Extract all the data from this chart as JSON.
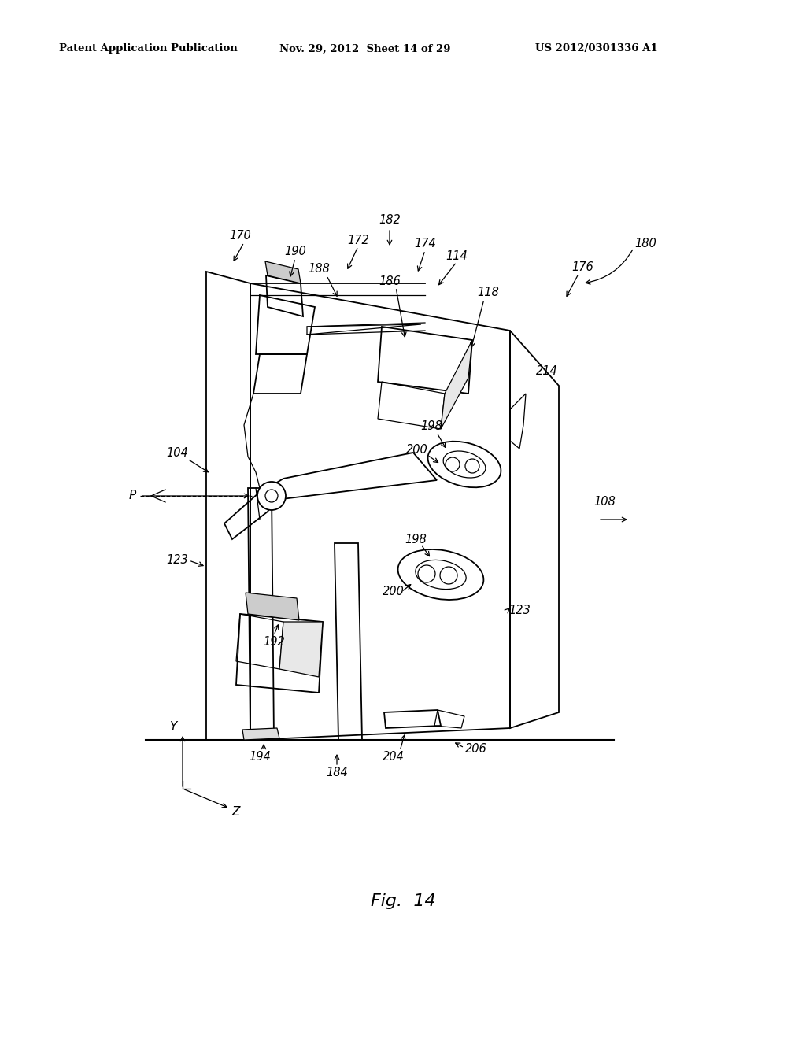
{
  "background_color": "#ffffff",
  "header_left": "Patent Application Publication",
  "header_mid": "Nov. 29, 2012  Sheet 14 of 29",
  "header_right": "US 2012/0301336 A1",
  "fig_label": "Fig.  14",
  "fig_num": "14"
}
